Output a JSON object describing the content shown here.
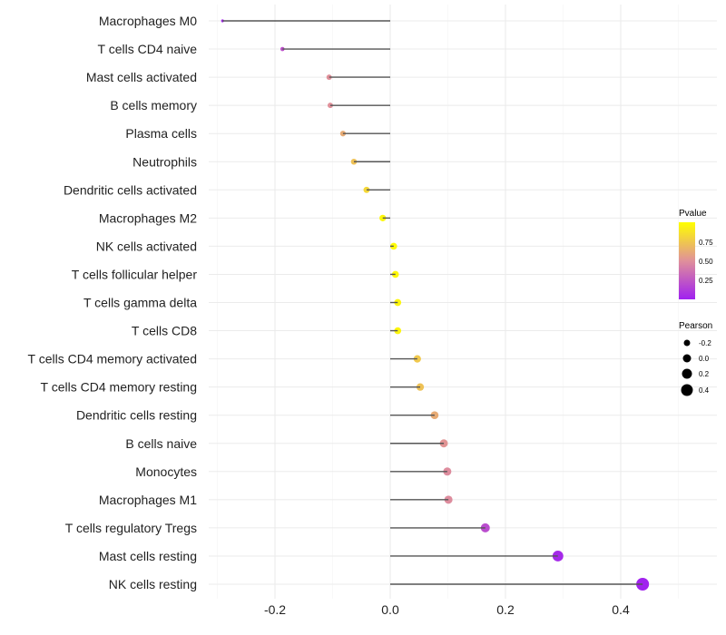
{
  "chart_data": {
    "type": "lollipop",
    "title": "",
    "xlabel": "",
    "ylabel": "",
    "xlim": [
      -0.31,
      0.56
    ],
    "x_ticks": [
      -0.2,
      0.0,
      0.2,
      0.4
    ],
    "x_tick_labels": [
      "-0.2",
      "0.0",
      "0.2",
      "0.4"
    ],
    "grid": true,
    "categories": [
      "Macrophages M0",
      "T cells CD4 naive",
      "Mast cells activated",
      "B cells memory",
      "Plasma cells",
      "Neutrophils",
      "Dendritic cells activated",
      "Macrophages M2",
      "NK cells activated",
      "T cells follicular helper",
      "T cells gamma delta",
      "T cells CD8",
      "T cells CD4 memory activated",
      "T cells CD4 memory resting",
      "Dendritic cells resting",
      "B cells naive",
      "Monocytes",
      "Macrophages M1",
      "T cells regulatory  Tregs ",
      "Mast cells resting",
      "NK cells resting"
    ],
    "pearson": [
      -0.291,
      -0.187,
      -0.106,
      -0.104,
      -0.082,
      -0.063,
      -0.041,
      -0.013,
      0.006,
      0.009,
      0.013,
      0.013,
      0.047,
      0.052,
      0.077,
      0.093,
      0.099,
      0.101,
      0.165,
      0.291,
      0.438
    ],
    "pvalue": [
      0.02,
      0.22,
      0.5,
      0.5,
      0.62,
      0.72,
      0.82,
      0.97,
      0.98,
      0.97,
      0.96,
      0.96,
      0.75,
      0.72,
      0.62,
      0.52,
      0.48,
      0.48,
      0.2,
      0.04,
      0.01
    ],
    "legend": {
      "position": "right",
      "color_title": "Pvalue",
      "color_ticks": [
        "0.75",
        "0.50",
        "0.25"
      ],
      "color_low": "#A020F0",
      "color_mid": "#E0909A",
      "color_high": "#FFFF00",
      "size_title": "Pearson",
      "size_ticks": [
        "-0.2",
        "0.0",
        "0.2",
        "0.4"
      ]
    }
  }
}
